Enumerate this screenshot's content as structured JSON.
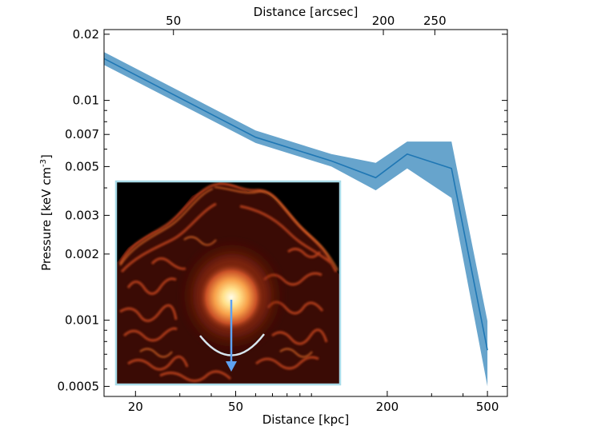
{
  "chart_data": {
    "type": "line",
    "title": "",
    "xlabel": "Distance [kpc]",
    "x2label": "Distance [arcsec]",
    "ylabel_main": "Pressure [keV cm",
    "ylabel_exp": "-3",
    "ylabel_close": "]",
    "xscale": "log",
    "yscale": "log",
    "xlim": [
      15,
      600
    ],
    "ylim": [
      0.00045,
      0.021
    ],
    "x_ticks": [
      {
        "value": 20,
        "label": "20"
      },
      {
        "value": 50,
        "label": "50"
      },
      {
        "value": 200,
        "label": "200"
      },
      {
        "value": 500,
        "label": "500"
      }
    ],
    "x2_ticks": [
      {
        "label": "50",
        "x_kpc": 28.3
      },
      {
        "label": "200",
        "x_kpc": 193
      },
      {
        "label": "250",
        "x_kpc": 309
      }
    ],
    "y_ticks": [
      {
        "value": 0.02,
        "label": "0.02"
      },
      {
        "value": 0.01,
        "label": "0.01"
      },
      {
        "value": 0.007,
        "label": "0.007"
      },
      {
        "value": 0.005,
        "label": "0.005"
      },
      {
        "value": 0.003,
        "label": "0.003"
      },
      {
        "value": 0.002,
        "label": "0.002"
      },
      {
        "value": 0.001,
        "label": "0.001"
      },
      {
        "value": 0.0005,
        "label": "0.0005"
      }
    ],
    "grid": false,
    "series": [
      {
        "color": "#1f77b4",
        "band_color": "#5a9cc8",
        "x": [
          15,
          60,
          120,
          180,
          240,
          360,
          500
        ],
        "y": [
          0.0155,
          0.0068,
          0.0053,
          0.00445,
          0.0057,
          0.0049,
          0.00073
        ],
        "y_low": [
          0.0145,
          0.0064,
          0.005,
          0.0039,
          0.0049,
          0.0036,
          0.0005
        ],
        "y_high": [
          0.0166,
          0.0073,
          0.0057,
          0.0052,
          0.0065,
          0.0065,
          0.00099
        ]
      }
    ]
  },
  "inset": {
    "description_free": true,
    "arrow_color": "#5ea2f2",
    "arc_color": "#d7e6ee",
    "border_color": "#a8dbe8"
  }
}
